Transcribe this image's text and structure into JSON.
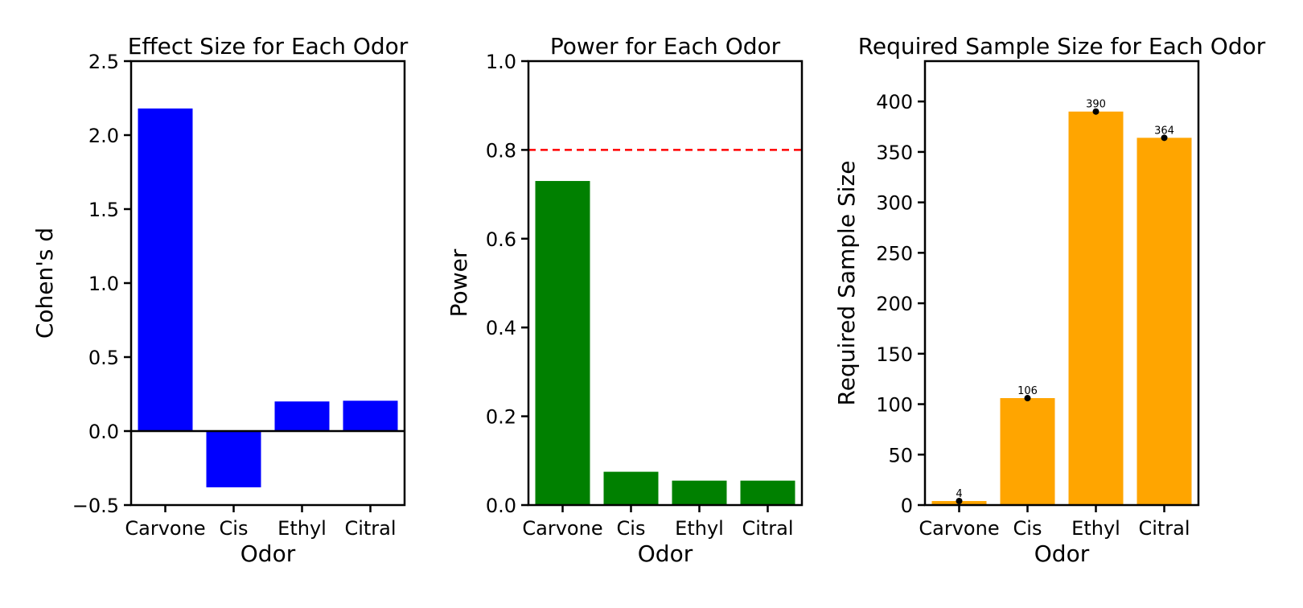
{
  "chart_data": [
    {
      "type": "bar",
      "title": "Effect Size for Each Odor",
      "xlabel": "Odor",
      "ylabel": "Cohen's d",
      "categories": [
        "Carvone",
        "Cis",
        "Ethyl",
        "Citral"
      ],
      "values": [
        2.18,
        -0.38,
        0.2,
        0.205
      ],
      "ylim": [
        -0.5,
        2.5
      ],
      "yticks": [
        -0.5,
        0.0,
        0.5,
        1.0,
        1.5,
        2.0,
        2.5
      ],
      "ytick_labels": [
        "−0.5",
        "0.0",
        "0.5",
        "1.0",
        "1.5",
        "2.0",
        "2.5"
      ],
      "bar_color": "#0000ff",
      "zero_line": true,
      "grid": false
    },
    {
      "type": "bar",
      "title": "Power for Each Odor",
      "xlabel": "Odor",
      "ylabel": "Power",
      "categories": [
        "Carvone",
        "Cis",
        "Ethyl",
        "Citral"
      ],
      "values": [
        0.73,
        0.075,
        0.055,
        0.055
      ],
      "ylim": [
        0.0,
        1.0
      ],
      "yticks": [
        0.0,
        0.2,
        0.4,
        0.6,
        0.8,
        1.0
      ],
      "ytick_labels": [
        "0.0",
        "0.2",
        "0.4",
        "0.6",
        "0.8",
        "1.0"
      ],
      "bar_color": "#008000",
      "reference_line": {
        "y": 0.8,
        "color": "#ff0000",
        "style": "dashed"
      },
      "grid": false
    },
    {
      "type": "bar",
      "title": "Required Sample Size for Each Odor",
      "xlabel": "Odor",
      "ylabel": "Required Sample Size",
      "categories": [
        "Carvone",
        "Cis",
        "Ethyl",
        "Citral"
      ],
      "values": [
        4,
        106,
        390,
        364
      ],
      "data_labels": [
        "4",
        "106",
        "390",
        "364"
      ],
      "ylim": [
        0,
        440
      ],
      "yticks": [
        0,
        50,
        100,
        150,
        200,
        250,
        300,
        350,
        400
      ],
      "ytick_labels": [
        "0",
        "50",
        "100",
        "150",
        "200",
        "250",
        "300",
        "350",
        "400"
      ],
      "bar_color": "#ffa500",
      "marker_color": "#000000",
      "grid": false
    }
  ]
}
